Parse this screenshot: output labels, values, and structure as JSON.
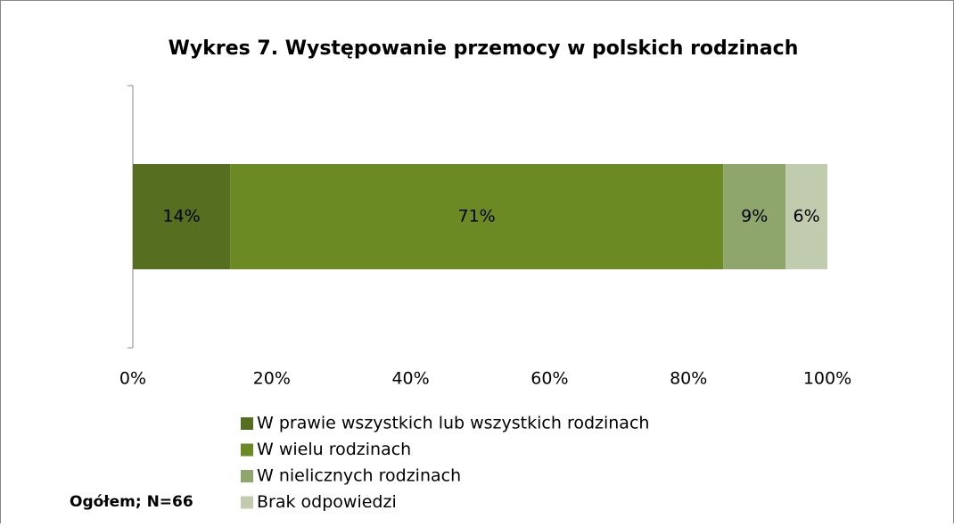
{
  "chart_data": {
    "type": "stacked_barh",
    "title": "Wykres 7. Występowanie przemocy w polskich rodzinach",
    "annotation": "Ogółem; N=66",
    "categories": [
      null
    ],
    "series": [
      {
        "name": "W prawie wszystkich lub wszystkich rodzinach",
        "color": "#566e1f",
        "values": [
          14
        ],
        "value_labels": [
          "14%"
        ]
      },
      {
        "name": "W wielu rodzinach",
        "color": "#6b8a24",
        "values": [
          71
        ],
        "value_labels": [
          "71%"
        ]
      },
      {
        "name": "W nielicznych rodzinach",
        "color": "#8ea56b",
        "values": [
          9
        ],
        "value_labels": [
          "9%"
        ]
      },
      {
        "name": "Brak odpowiedzi",
        "color": "#c1cbae",
        "values": [
          6
        ],
        "value_labels": [
          "6%"
        ]
      }
    ],
    "xlim": [
      0,
      100
    ],
    "xticks": [
      {
        "value": 0,
        "label": "0%"
      },
      {
        "value": 20,
        "label": "20%"
      },
      {
        "value": 40,
        "label": "40%"
      },
      {
        "value": 60,
        "label": "60%"
      },
      {
        "value": 80,
        "label": "80%"
      },
      {
        "value": 100,
        "label": "100%"
      }
    ],
    "legend": "bottom"
  }
}
